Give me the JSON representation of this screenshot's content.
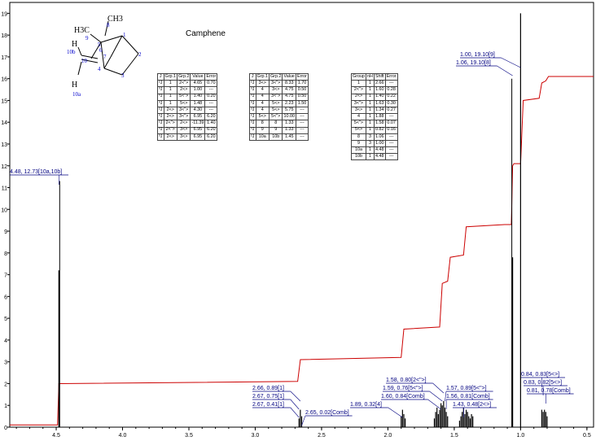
{
  "chart_data": {
    "type": "line",
    "title": "Camphene",
    "xlabel": "",
    "ylabel": "",
    "xlim": [
      4.85,
      0.45
    ],
    "ylim": [
      0,
      19.5
    ],
    "x_reversed": true,
    "x_ticks": [
      "4.5",
      "4.0",
      "3.5",
      "3.0",
      "2.5",
      "2.0",
      "1.5",
      "1.0",
      "0.5"
    ],
    "x_tick_values": [
      4.5,
      4.0,
      3.5,
      3.0,
      2.5,
      2.0,
      1.5,
      1.0,
      0.5
    ],
    "y_ticks": [
      "0",
      "1",
      "2",
      "3",
      "4",
      "5",
      "6",
      "7",
      "8",
      "9",
      "10",
      "11",
      "12",
      "13",
      "14",
      "15",
      "16",
      "17",
      "18",
      "19"
    ],
    "series": [
      {
        "name": "",
        "kind": "integral",
        "color": "#cc0000",
        "x": [
          4.85,
          4.49,
          4.48,
          2.68,
          2.66,
          1.9,
          1.88,
          1.61,
          1.59,
          1.55,
          1.53,
          1.43,
          1.41,
          1.12,
          1.07,
          1.06,
          1.05,
          1.0,
          0.98,
          0.86,
          0.84,
          0.81,
          0.79,
          0.45
        ],
        "y": [
          0.1,
          0.1,
          2.0,
          2.1,
          3.1,
          3.2,
          4.5,
          4.6,
          6.6,
          6.7,
          7.8,
          7.9,
          9.2,
          9.3,
          9.3,
          12.0,
          12.1,
          12.1,
          15.0,
          15.1,
          15.8,
          15.9,
          16.1,
          16.1
        ]
      }
    ],
    "peaks": [
      {
        "shift": 4.48,
        "height": 7.2
      },
      {
        "shift": 2.67,
        "height": 0.4
      },
      {
        "shift": 2.66,
        "height": 0.8
      },
      {
        "shift": 2.65,
        "height": 0.5
      },
      {
        "shift": 1.9,
        "height": 0.5
      },
      {
        "shift": 1.89,
        "height": 0.8
      },
      {
        "shift": 1.88,
        "height": 0.6
      },
      {
        "shift": 1.87,
        "height": 0.4
      },
      {
        "shift": 1.65,
        "height": 0.4
      },
      {
        "shift": 1.64,
        "height": 0.7
      },
      {
        "shift": 1.63,
        "height": 0.9
      },
      {
        "shift": 1.62,
        "height": 0.6
      },
      {
        "shift": 1.61,
        "height": 0.8
      },
      {
        "shift": 1.6,
        "height": 1.1
      },
      {
        "shift": 1.59,
        "height": 1.0
      },
      {
        "shift": 1.58,
        "height": 1.2
      },
      {
        "shift": 1.57,
        "height": 0.9
      },
      {
        "shift": 1.56,
        "height": 0.7
      },
      {
        "shift": 1.55,
        "height": 0.5
      },
      {
        "shift": 1.46,
        "height": 0.3
      },
      {
        "shift": 1.45,
        "height": 0.5
      },
      {
        "shift": 1.44,
        "height": 0.7
      },
      {
        "shift": 1.43,
        "height": 0.9
      },
      {
        "shift": 1.42,
        "height": 0.6
      },
      {
        "shift": 1.41,
        "height": 0.8
      },
      {
        "shift": 1.4,
        "height": 0.7
      },
      {
        "shift": 1.39,
        "height": 0.5
      },
      {
        "shift": 1.38,
        "height": 0.4
      },
      {
        "shift": 1.37,
        "height": 0.6
      },
      {
        "shift": 1.36,
        "height": 0.5
      },
      {
        "shift": 1.06,
        "height": 7.8
      },
      {
        "shift": 1.0,
        "height": 19.0
      },
      {
        "shift": 0.84,
        "height": 0.8
      },
      {
        "shift": 0.83,
        "height": 0.7
      },
      {
        "shift": 0.82,
        "height": 0.8
      },
      {
        "shift": 0.81,
        "height": 0.7
      },
      {
        "shift": 0.8,
        "height": 0.5
      }
    ],
    "peak_labels": [
      {
        "text": "4.48, 12.73[10a,10b]",
        "shift": 4.48
      },
      {
        "text": "2.66, 0.89[1]",
        "shift": 2.66
      },
      {
        "text": "2.67, 0.75[1]",
        "shift": 2.67
      },
      {
        "text": "2.67, 0.41[1]",
        "shift": 2.67
      },
      {
        "text": "2.65, 0.02[Comb]",
        "shift": 2.65
      },
      {
        "text": "1.89, 0.32[4]",
        "shift": 1.89
      },
      {
        "text": "1.58, 0.80[2<\">]",
        "shift": 1.58
      },
      {
        "text": "1.59, 0.76[5<\">]",
        "shift": 1.59
      },
      {
        "text": "1.60, 0.84[Comb]",
        "shift": 1.6
      },
      {
        "text": "1.57, 0.89[5<\">]",
        "shift": 1.57
      },
      {
        "text": "1.56, 0.81[Comb]",
        "shift": 1.56
      },
      {
        "text": "1.43, 0.48[2<>]",
        "shift": 1.43
      },
      {
        "text": "1.00, 19.10[9]",
        "shift": 1.0
      },
      {
        "text": "1.06, 19.10[8]",
        "shift": 1.06
      },
      {
        "text": "0.84, 0.83[5<>]",
        "shift": 0.84
      },
      {
        "text": "0.83, 0.82[5<>]",
        "shift": 0.83
      },
      {
        "text": "0.81, 0.78[Comb]",
        "shift": 0.81
      }
    ],
    "grid": false
  },
  "colors": {
    "spectrum": "#000000",
    "integral": "#cc0000",
    "labels": "#000080",
    "atom_numbers": "#0000cc"
  },
  "molecule": {
    "atoms": [
      "CH3",
      "H3C",
      "9",
      "8",
      "5",
      "1",
      "2",
      "3",
      "4",
      "6",
      "7",
      "10",
      "10b",
      "10a",
      "H",
      "H"
    ]
  },
  "tables": {
    "coupling_header": [
      "J",
      "Grp.1",
      "Grp.2",
      "Value",
      "Error"
    ],
    "coupling_left": [
      [
        "²J",
        "1",
        "2<\">",
        "4.65",
        "0.70"
      ],
      [
        "³J",
        "1",
        "2<>",
        "1.00",
        "---"
      ],
      [
        "³J",
        "1",
        "5<\">",
        "1.40",
        "0.20"
      ],
      [
        "³J",
        "1",
        "5<>",
        "1.48",
        "---"
      ],
      [
        "²J",
        "2<>",
        "3<\">",
        "4.30",
        "---"
      ],
      [
        "³J",
        "2<>",
        "3<\">",
        "6.95",
        "6.20"
      ],
      [
        "²J",
        "2<\">",
        "2<>",
        "-11.39",
        "1.40"
      ],
      [
        "³J",
        "2<\">",
        "3<>",
        "6.95",
        "6.20"
      ],
      [
        "³J",
        "2<>",
        "3<>",
        "6.95",
        "6.20"
      ]
    ],
    "coupling_right": [
      [
        "²J",
        "3<>",
        "3<\">",
        "8.33",
        "1.70"
      ],
      [
        "³J",
        "4",
        "3<>",
        "4.75",
        "0.50"
      ],
      [
        "³J",
        "4",
        "3<\">",
        "4.75",
        "0.50"
      ],
      [
        "³J",
        "4",
        "5<>",
        "2.23",
        "1.50"
      ],
      [
        "³J",
        "4",
        "5<>",
        "5.75",
        "---"
      ],
      [
        "²J",
        "5<>",
        "5<\">",
        "10.00",
        "---"
      ],
      [
        "³J",
        "8",
        "8",
        "1.33",
        "---"
      ],
      [
        "³J",
        "9",
        "9",
        "1.33",
        "---"
      ],
      [
        "²J",
        "10a",
        "10b",
        "1.45",
        "---"
      ]
    ],
    "shift_header": [
      "Group",
      "nH",
      "Shift",
      "Error"
    ],
    "shift_rows": [
      [
        "1",
        "1",
        "2.66",
        "---"
      ],
      [
        "2<\">",
        "1",
        "1.60",
        "0.28"
      ],
      [
        "2<>",
        "1",
        "1.40",
        "0.22"
      ],
      [
        "3<\">",
        "1",
        "1.63",
        "0.30"
      ],
      [
        "3<>",
        "1",
        "1.34",
        "0.27"
      ],
      [
        "4",
        "1",
        "1.88",
        "---"
      ],
      [
        "5<\">",
        "1",
        "1.58",
        "0.07"
      ],
      [
        "5<>",
        "1",
        "0.82",
        "0.16"
      ],
      [
        "8",
        "3",
        "1.06",
        "---"
      ],
      [
        "9",
        "3",
        "1.00",
        "---"
      ],
      [
        "10a",
        "1",
        "4.48",
        "---"
      ],
      [
        "10b",
        "1",
        "4.48",
        "---"
      ]
    ]
  }
}
